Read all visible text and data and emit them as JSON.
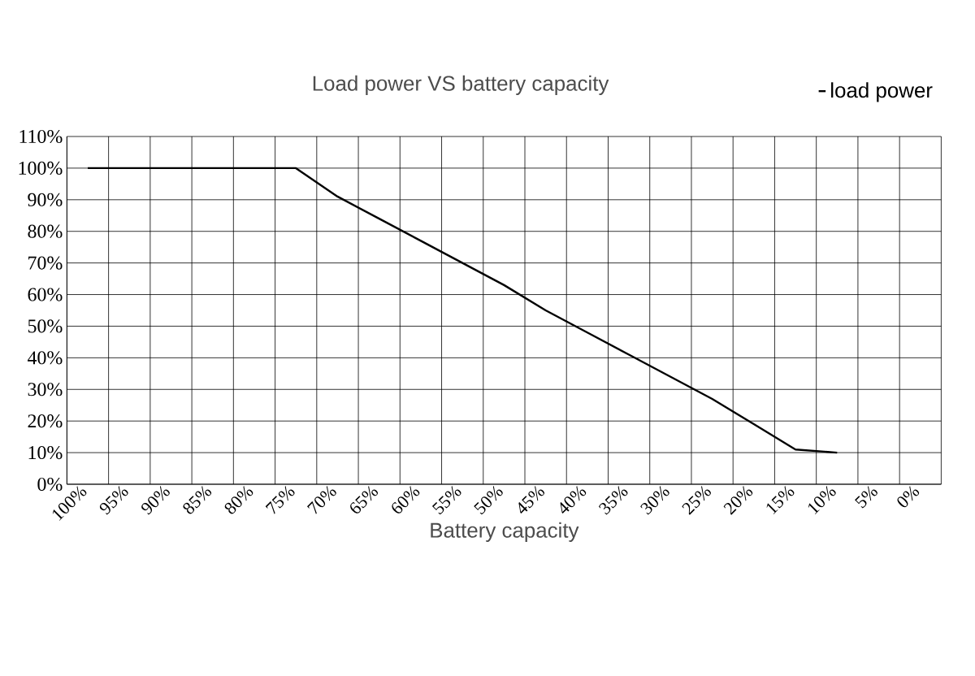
{
  "chart_data": {
    "type": "line",
    "title": "Load power VS battery capacity",
    "xlabel": "Battery capacity",
    "categories": [
      "100%",
      "95%",
      "90%",
      "85%",
      "80%",
      "75%",
      "70%",
      "65%",
      "60%",
      "55%",
      "50%",
      "45%",
      "40%",
      "35%",
      "30%",
      "25%",
      "20%",
      "15%",
      "10%",
      "5%",
      "0%"
    ],
    "series": [
      {
        "name": "load power",
        "color": "#000000",
        "values": [
          100,
          100,
          100,
          100,
          100,
          100,
          91,
          84,
          77,
          70,
          63,
          55,
          48,
          41,
          34,
          27,
          19,
          11,
          10,
          null,
          null
        ]
      }
    ],
    "ylim": [
      0,
      110
    ],
    "yticks": [
      {
        "value": 0,
        "label": "0%"
      },
      {
        "value": 10,
        "label": "10%"
      },
      {
        "value": 20,
        "label": "20%"
      },
      {
        "value": 30,
        "label": "30%"
      },
      {
        "value": 40,
        "label": "40%"
      },
      {
        "value": 50,
        "label": "50%"
      },
      {
        "value": 60,
        "label": "60%"
      },
      {
        "value": 70,
        "label": "70%"
      },
      {
        "value": 80,
        "label": "80%"
      },
      {
        "value": 90,
        "label": "90%"
      },
      {
        "value": 100,
        "label": "100%"
      },
      {
        "value": 110,
        "label": "110%"
      }
    ],
    "grid": true,
    "legend": "top right",
    "marker": "none",
    "line_style": "solid"
  }
}
